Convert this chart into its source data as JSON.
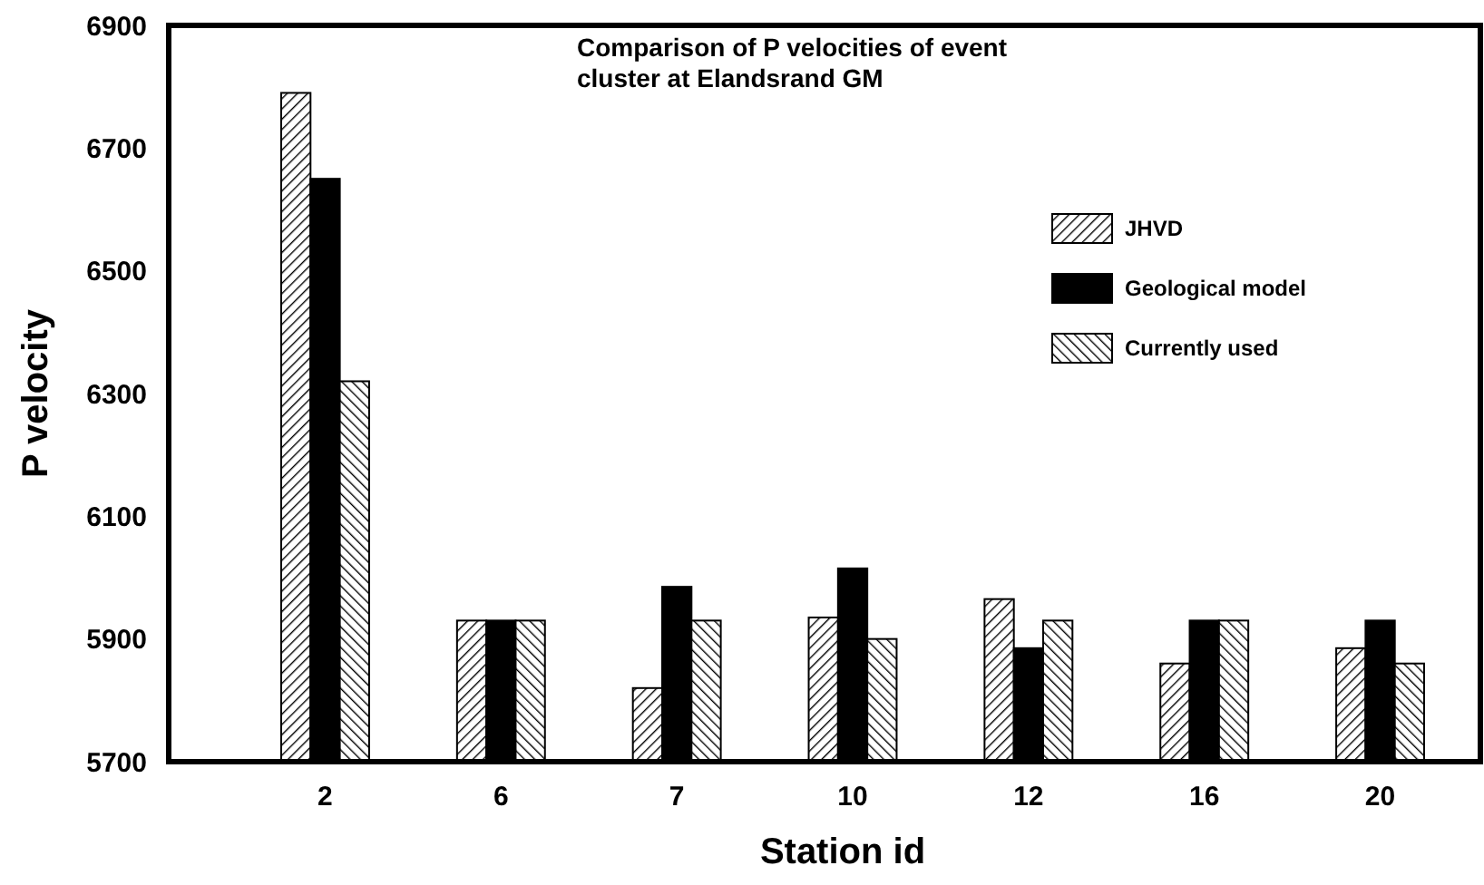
{
  "chart_data": {
    "type": "bar",
    "title": "Comparison of P velocities of event\ncluster at Elandsrand GM",
    "xlabel": "Station id",
    "ylabel": "P velocity",
    "categories": [
      "2",
      "6",
      "7",
      "10",
      "12",
      "16",
      "20"
    ],
    "series": [
      {
        "name": "JHVD",
        "color": "#000000",
        "values": [
          6790,
          5930,
          5820,
          5935,
          5965,
          5860,
          5885
        ]
      },
      {
        "name": "Geological model",
        "color": "#000000",
        "values": [
          6650,
          5930,
          5985,
          6015,
          5885,
          5930,
          5930
        ]
      },
      {
        "name": "Currently used",
        "color": "#000000",
        "values": [
          6320,
          5930,
          5930,
          5900,
          5930,
          5930,
          5860
        ]
      }
    ],
    "ylim": [
      5700,
      6900
    ],
    "yticks": [
      5700,
      5900,
      6100,
      6300,
      6500,
      6700,
      6900
    ],
    "grid": false,
    "legend": "top right"
  }
}
